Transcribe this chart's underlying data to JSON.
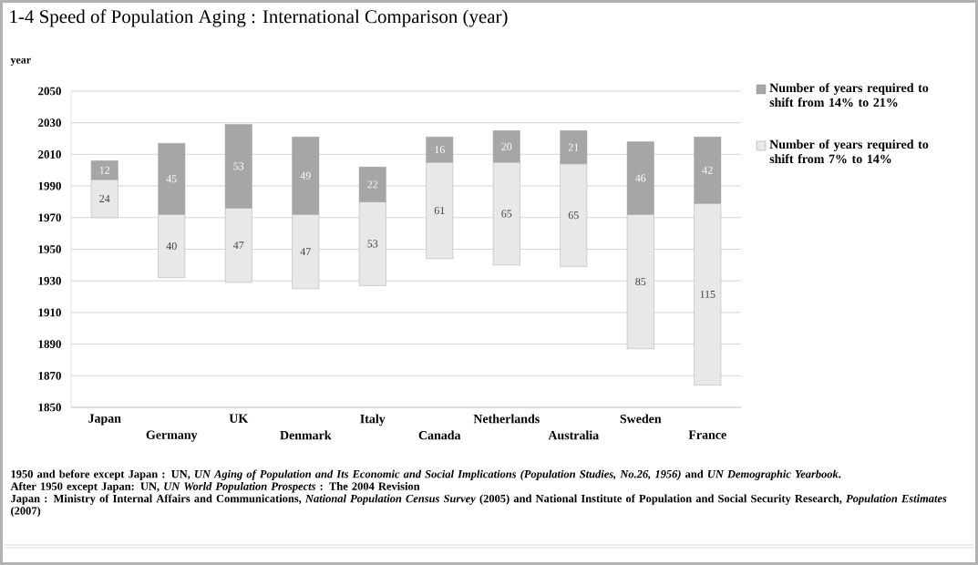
{
  "chart_data": {
    "type": "bar",
    "title": "1-4 Speed of Population Aging : International Comparison (year)",
    "ylabel": "year",
    "categories": [
      "Japan",
      "Germany",
      "UK",
      "Denmark",
      "Italy",
      "Canada",
      "Netherlands",
      "Australia",
      "Sweden",
      "France"
    ],
    "stacked": true,
    "series": [
      {
        "name": "Number of years required to shift from 7% to 14%",
        "color": "#e8e8e8",
        "base": [
          1970,
          1932,
          1929,
          1925,
          1927,
          1944,
          1940,
          1939,
          1887,
          1864
        ],
        "values": [
          24,
          40,
          47,
          47,
          53,
          61,
          65,
          65,
          85,
          115
        ]
      },
      {
        "name": "Number of years required to shift from 14% to 21%",
        "color": "#a6a6a6",
        "base": [
          1994,
          1972,
          1976,
          1972,
          1980,
          2005,
          2005,
          2004,
          1972,
          1979
        ],
        "values": [
          12,
          45,
          53,
          49,
          22,
          16,
          20,
          21,
          46,
          42
        ]
      }
    ],
    "ylim": [
      1850,
      2050
    ],
    "yticks": [
      1850,
      1870,
      1890,
      1910,
      1930,
      1950,
      1970,
      1990,
      2010,
      2030,
      2050
    ],
    "grid": "y",
    "legend": "right",
    "data_labels": true,
    "annotations": [
      "1950 and before except Japan : UN, *UN Aging of Population and Its Economic and Social Implications (Population Studies, No.26, 1956)* and *UN Demographic Yearbook*.",
      "After 1950 except Japan: UN, *UN World Population Prospects* : The 2004 Revision",
      "Japan : Ministry of Internal Affairs and Communications, *National Population Census Survey* (2005) and National Institute of Population and Social Security Research, *Population Estimates* (2007)"
    ]
  }
}
